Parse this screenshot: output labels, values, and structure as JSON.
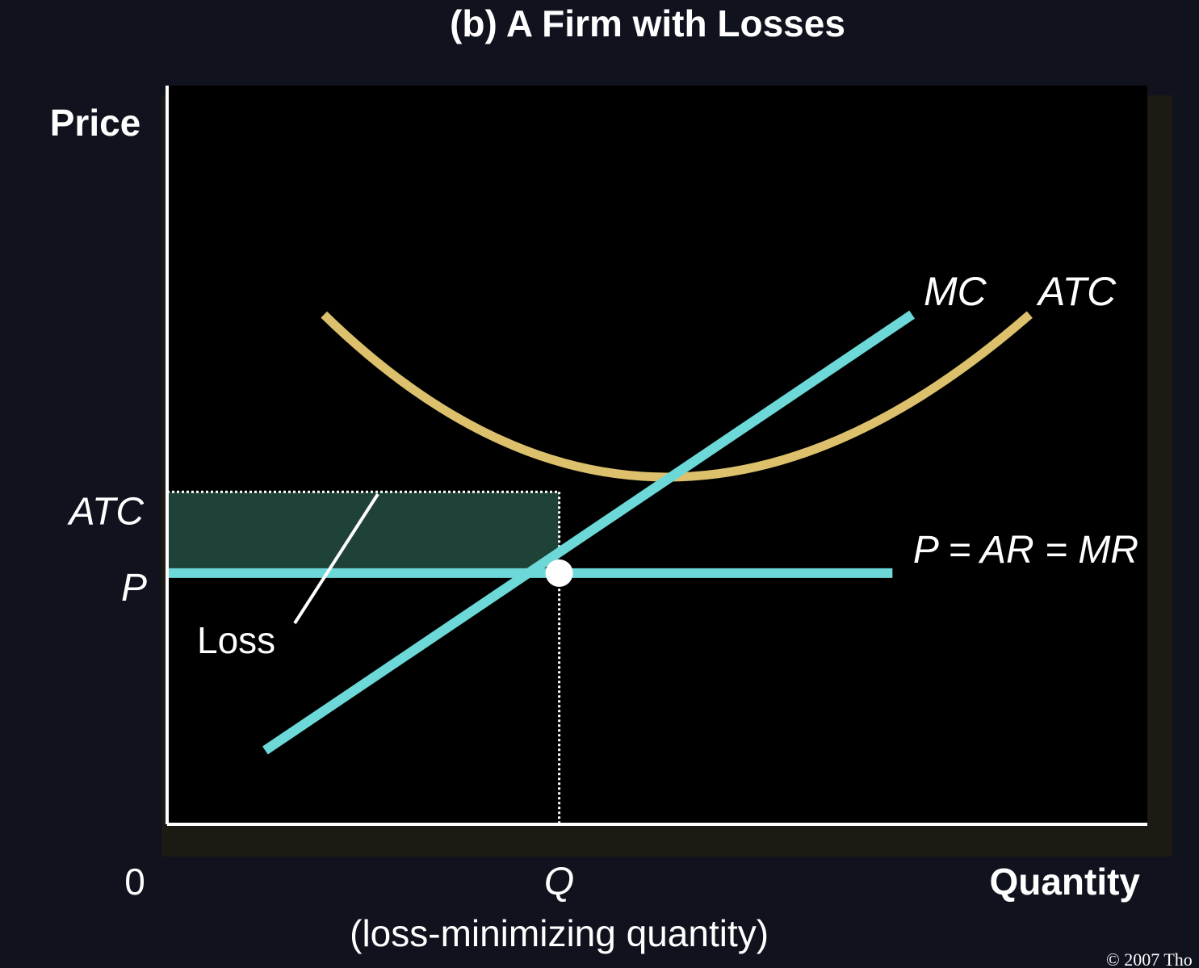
{
  "title": "(b) A Firm with Losses",
  "copyright": "© 2007 Tho",
  "chart_data": {
    "type": "line",
    "title": "(b) A Firm with Losses",
    "ylabel": "Price",
    "xlabel": "Quantity",
    "origin_label": "0",
    "x_ticks": [
      {
        "value": 0.4,
        "label": "Q",
        "sublabel": "(loss-minimizing quantity)"
      }
    ],
    "y_ticks": [
      {
        "value": 0.45,
        "label": "ATC"
      },
      {
        "value": 0.34,
        "label": "P"
      }
    ],
    "xlim": [
      0,
      1
    ],
    "ylim": [
      0,
      1
    ],
    "grid": false,
    "series": [
      {
        "name": "MC",
        "color": "#6cd8d8",
        "points": [
          [
            0.1,
            0.1
          ],
          [
            0.76,
            0.69
          ]
        ]
      },
      {
        "name": "ATC",
        "color": "#dcc06c",
        "points": [
          [
            0.16,
            0.69
          ],
          [
            0.51,
            0.47
          ],
          [
            0.88,
            0.69
          ]
        ]
      },
      {
        "name": "P = AR = MR",
        "color": "#6cd8d8",
        "points": [
          [
            0,
            0.34
          ],
          [
            0.74,
            0.34
          ]
        ]
      }
    ],
    "shaded_region": {
      "label": "Loss",
      "color": "#1e4238",
      "x": [
        0,
        0.4
      ],
      "y": [
        0.34,
        0.45
      ]
    },
    "marker": {
      "x": 0.4,
      "y": 0.34,
      "color": "#ffffff"
    }
  }
}
